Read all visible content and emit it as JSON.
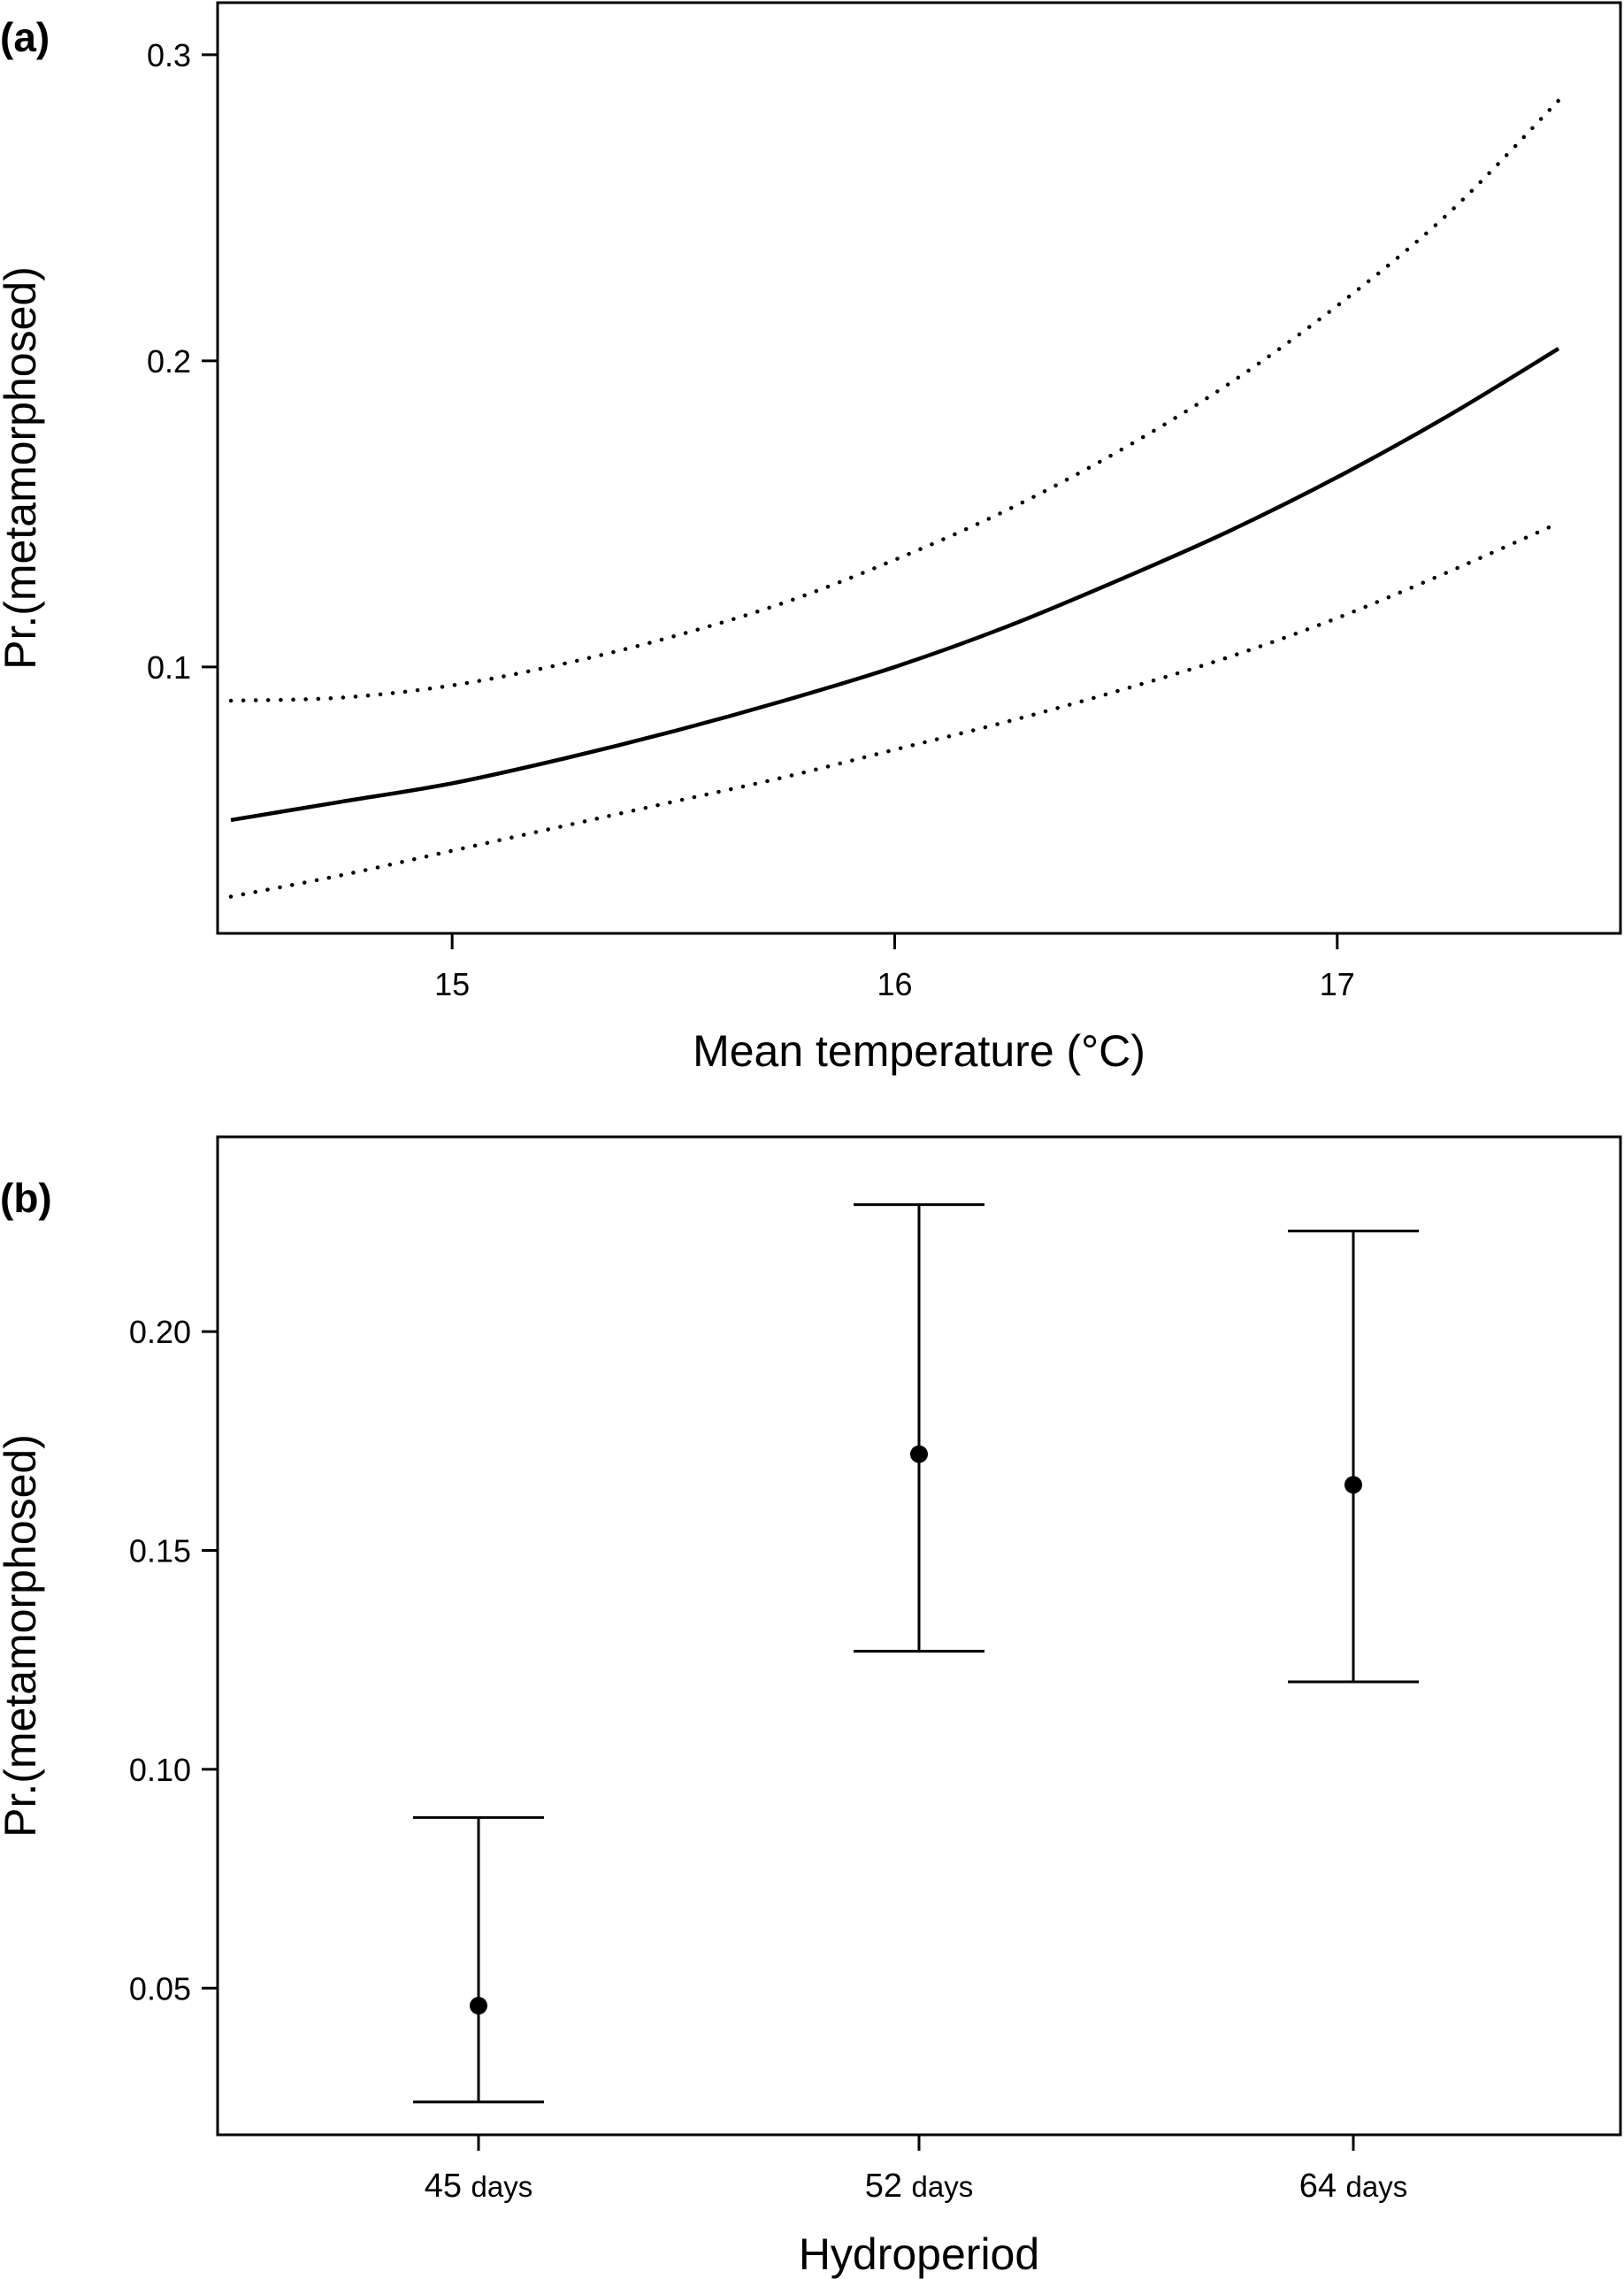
{
  "chart_data": [
    {
      "panel_label": "(a)",
      "type": "line",
      "xlabel": "Mean temperature (°C)",
      "ylabel": "Pr.(metamorphosed)",
      "xlim": [
        14.47,
        17.64
      ],
      "ylim": [
        0.013,
        0.317
      ],
      "xticks": [
        15,
        16,
        17
      ],
      "xtick_labels": [
        "15",
        "16",
        "17"
      ],
      "yticks": [
        0.1,
        0.2,
        0.3
      ],
      "ytick_labels": [
        "0.1",
        "0.2",
        "0.3"
      ],
      "grid": false,
      "x": [
        14.5,
        14.75,
        15.0,
        15.25,
        15.5,
        15.75,
        16.0,
        16.25,
        16.5,
        16.75,
        17.0,
        17.25,
        17.5
      ],
      "series": [
        {
          "role": "estimate",
          "style": "solid",
          "values": [
            0.05,
            0.056,
            0.062,
            0.07,
            0.079,
            0.089,
            0.1,
            0.113,
            0.128,
            0.144,
            0.162,
            0.182,
            0.204
          ]
        },
        {
          "role": "upper",
          "style": "dotted",
          "values": [
            0.089,
            0.09,
            0.094,
            0.101,
            0.11,
            0.121,
            0.135,
            0.151,
            0.17,
            0.192,
            0.218,
            0.248,
            0.285
          ]
        },
        {
          "role": "lower",
          "style": "dotted",
          "values": [
            0.025,
            0.032,
            0.04,
            0.048,
            0.056,
            0.064,
            0.073,
            0.082,
            0.092,
            0.103,
            0.116,
            0.131,
            0.147
          ]
        }
      ]
    },
    {
      "panel_label": "(b)",
      "type": "scatter",
      "xlabel": "Hydroperiod",
      "ylabel": "Pr.(metamorphosed)",
      "categories": [
        "45",
        "52",
        "64"
      ],
      "category_unit": "days",
      "ylim": [
        0.0165,
        0.2445
      ],
      "yticks": [
        0.05,
        0.1,
        0.15,
        0.2
      ],
      "ytick_labels": [
        "0.05",
        "0.10",
        "0.15",
        "0.20"
      ],
      "grid": false,
      "values": [
        0.046,
        0.172,
        0.165
      ],
      "lower": [
        0.024,
        0.127,
        0.12
      ],
      "upper": [
        0.089,
        0.229,
        0.223
      ]
    }
  ]
}
